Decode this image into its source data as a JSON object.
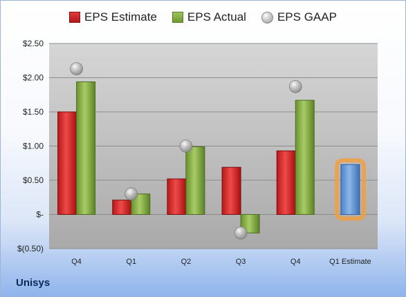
{
  "company_label": "Unisys",
  "legend": {
    "estimate": "EPS Estimate",
    "actual": "EPS Actual",
    "gaap": "EPS GAAP"
  },
  "colors": {
    "estimate": "#cc2222",
    "actual": "#7ea83c",
    "gaap": "#aaaaaa",
    "estimate_bar": "#6f9fd8",
    "highlight": "#f0a040"
  },
  "chart_data": {
    "type": "bar",
    "categories": [
      "Q4",
      "Q1",
      "Q2",
      "Q3",
      "Q4",
      "Q1 Estimate"
    ],
    "series": [
      {
        "name": "EPS Estimate",
        "values": [
          1.5,
          0.21,
          0.52,
          0.69,
          0.93,
          null
        ]
      },
      {
        "name": "EPS Actual",
        "values": [
          1.94,
          0.3,
          0.99,
          -0.27,
          1.67,
          0.73
        ]
      },
      {
        "name": "EPS GAAP",
        "values": [
          2.13,
          0.3,
          1.0,
          -0.27,
          1.87,
          null
        ]
      }
    ],
    "ylim": [
      -0.5,
      2.5
    ],
    "yticks": [
      -0.5,
      0,
      0.5,
      1.0,
      1.5,
      2.0,
      2.5
    ],
    "ytick_labels": [
      "$(0.50)",
      "$-",
      "$0.50",
      "$1.00",
      "$1.50",
      "$2.00",
      "$2.50"
    ],
    "highlight_category": "Q1 Estimate",
    "legend_position": "top",
    "grid": true
  }
}
